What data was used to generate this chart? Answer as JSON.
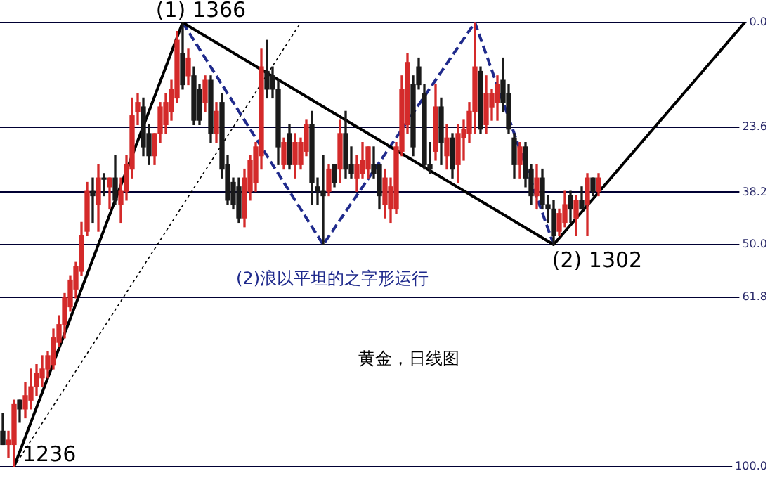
{
  "chart_data": {
    "type": "candlestick",
    "categories": [
      null,
      null,
      null,
      null,
      null,
      null,
      null,
      null,
      null,
      null,
      null,
      null,
      null,
      null,
      null,
      null,
      null,
      null,
      null,
      null,
      null,
      null,
      null,
      null,
      null,
      null,
      null,
      null,
      null,
      null,
      null,
      null,
      null,
      null,
      null,
      null,
      null,
      null,
      null,
      null,
      null,
      null,
      null,
      null,
      null,
      null,
      null,
      null,
      null,
      null,
      null,
      null,
      null,
      null,
      null,
      null,
      null,
      null,
      null,
      null,
      null,
      null,
      null,
      null,
      null,
      null,
      null,
      null,
      null,
      null,
      null,
      null,
      null,
      null,
      null,
      null,
      null,
      null,
      null,
      null,
      null,
      null,
      null,
      null,
      null,
      null,
      null,
      null,
      null,
      null,
      null,
      null,
      null,
      null,
      null,
      null,
      null,
      null,
      null,
      null,
      null,
      null,
      null,
      null,
      null,
      null,
      null,
      null,
      null,
      null,
      null,
      null,
      null,
      null,
      null,
      null,
      null,
      null,
      null,
      null,
      null,
      null,
      null,
      null,
      null,
      null,
      null,
      null,
      null,
      null,
      null,
      null,
      null,
      null,
      null,
      null,
      null
    ],
    "ohlc": [
      [
        92,
        95,
        88,
        95
      ],
      [
        95,
        98,
        92,
        94
      ],
      [
        95,
        100,
        85,
        86
      ],
      [
        85,
        90,
        85,
        87
      ],
      [
        87,
        89,
        81,
        84
      ],
      [
        85,
        87,
        78,
        82
      ],
      [
        82,
        84,
        77,
        79
      ],
      [
        80,
        82,
        75,
        78
      ],
      [
        78,
        80,
        74,
        75
      ],
      [
        77,
        78,
        69,
        71
      ],
      [
        72,
        73,
        66,
        68
      ],
      [
        68,
        71,
        61,
        62
      ],
      [
        64,
        65,
        57,
        58
      ],
      [
        60,
        62,
        54,
        55
      ],
      [
        56,
        57,
        45,
        48
      ],
      [
        47,
        48,
        36,
        38
      ],
      [
        38,
        45,
        35,
        39
      ],
      [
        41,
        47,
        32,
        35
      ],
      [
        35,
        39,
        34,
        35
      ],
      [
        37,
        42,
        35,
        35
      ],
      [
        35,
        41,
        30,
        40
      ],
      [
        41,
        45,
        35,
        38
      ],
      [
        38,
        40,
        30,
        32
      ],
      [
        33,
        35,
        17,
        21
      ],
      [
        20,
        23,
        16,
        18
      ],
      [
        19,
        30,
        17,
        28
      ],
      [
        25,
        32,
        23,
        30
      ],
      [
        30,
        32,
        25,
        25
      ],
      [
        25,
        27,
        18,
        19
      ],
      [
        23,
        25,
        16,
        18
      ],
      [
        20,
        22,
        13,
        15
      ],
      [
        17,
        18,
        2,
        4
      ],
      [
        7,
        15,
        0,
        14
      ],
      [
        12,
        14,
        6,
        8
      ],
      [
        12,
        23,
        10,
        22
      ],
      [
        15,
        23,
        14,
        22
      ],
      [
        18,
        20,
        12,
        13
      ],
      [
        13,
        27,
        12,
        25
      ],
      [
        25,
        27,
        18,
        20
      ],
      [
        18,
        35,
        16,
        33
      ],
      [
        32,
        41,
        30,
        40
      ],
      [
        36,
        42,
        35,
        41
      ],
      [
        37,
        45,
        35,
        44
      ],
      [
        44,
        46,
        33,
        35
      ],
      [
        38,
        40,
        30,
        31
      ],
      [
        36,
        38,
        27,
        28
      ],
      [
        30,
        33,
        6,
        10
      ],
      [
        11,
        17,
        4,
        15
      ],
      [
        12,
        17,
        10,
        15
      ],
      [
        15,
        32,
        13,
        28
      ],
      [
        32,
        33,
        26,
        27
      ],
      [
        25,
        33,
        23,
        32
      ],
      [
        32,
        35,
        25,
        27
      ],
      [
        32,
        33,
        26,
        27
      ],
      [
        29,
        30,
        22,
        23
      ],
      [
        23,
        41,
        20,
        36
      ],
      [
        37,
        41,
        35,
        38
      ],
      [
        38,
        50,
        30,
        39
      ],
      [
        38,
        39,
        32,
        33
      ],
      [
        32,
        37,
        32,
        36
      ],
      [
        33,
        36,
        22,
        25
      ],
      [
        25,
        35,
        20,
        33
      ],
      [
        32,
        35,
        28,
        34
      ],
      [
        35,
        38,
        30,
        32
      ],
      [
        34,
        35,
        27,
        31
      ],
      [
        33,
        35,
        28,
        28
      ],
      [
        32,
        35,
        28,
        34
      ],
      [
        32,
        42,
        32,
        39
      ],
      [
        41,
        44,
        33,
        35
      ],
      [
        42,
        45,
        35,
        37
      ],
      [
        42,
        43,
        27,
        28
      ],
      [
        29,
        30,
        12,
        15
      ],
      [
        23,
        25,
        7,
        9
      ],
      [
        14,
        30,
        12,
        28
      ],
      [
        10,
        15,
        8,
        14
      ],
      [
        16,
        33,
        14,
        32
      ],
      [
        32,
        34,
        27,
        33
      ],
      [
        29,
        31,
        14,
        19
      ],
      [
        19,
        32,
        17,
        27
      ],
      [
        30,
        33,
        23,
        26
      ],
      [
        26,
        35,
        25,
        33
      ],
      [
        32,
        36,
        23,
        25
      ],
      [
        26,
        31,
        22,
        24
      ],
      [
        25,
        27,
        18,
        20
      ],
      [
        20,
        25,
        0,
        10
      ],
      [
        11,
        25,
        10,
        24
      ],
      [
        23,
        25,
        12,
        16
      ],
      [
        19,
        22,
        15,
        16
      ],
      [
        18,
        22,
        12,
        14
      ],
      [
        13,
        20,
        8,
        18
      ],
      [
        16,
        25,
        14,
        24
      ],
      [
        26,
        35,
        25,
        32
      ],
      [
        32,
        35,
        27,
        28
      ],
      [
        28,
        37,
        27,
        35
      ],
      [
        33,
        41,
        32,
        39
      ],
      [
        39,
        42,
        32,
        35
      ],
      [
        35,
        42,
        33,
        41
      ],
      [
        41,
        45,
        39,
        42
      ],
      [
        42,
        50,
        40,
        48
      ],
      [
        47,
        48,
        42,
        43
      ],
      [
        45,
        46,
        38,
        41
      ],
      [
        39,
        45,
        38,
        42
      ],
      [
        44,
        48,
        39,
        40
      ],
      [
        40,
        42,
        37,
        42
      ],
      [
        41,
        48,
        34,
        35
      ],
      [
        35,
        39,
        35,
        38
      ],
      [
        38,
        39,
        34,
        35
      ],
      null,
      null,
      null,
      null,
      null,
      null,
      null,
      null,
      null,
      null,
      null,
      null,
      null,
      null,
      null,
      null,
      null,
      null,
      null,
      null,
      null,
      null,
      null,
      null,
      null,
      null,
      null,
      null,
      null,
      null
    ],
    "series": [
      {
        "type": "line",
        "color": "#000000",
        "line_style": "solid",
        "values": [
          null,
          null,
          100,
          null,
          null,
          null,
          null,
          null,
          null,
          null,
          null,
          null,
          null,
          null,
          null,
          null,
          null,
          null,
          null,
          null,
          null,
          null,
          null,
          null,
          null,
          null,
          null,
          null,
          null,
          null,
          null,
          null,
          0,
          null,
          null,
          null,
          null,
          null,
          null,
          null,
          null,
          null,
          null,
          null,
          null,
          null,
          null,
          null,
          null,
          null,
          null,
          null,
          null,
          null,
          null,
          null,
          null,
          null,
          null,
          null,
          null,
          null,
          null,
          null,
          null,
          null,
          null,
          null,
          null,
          null,
          null,
          null,
          null,
          null,
          null,
          null,
          null,
          null,
          null,
          null,
          null,
          null,
          null,
          null,
          null,
          null,
          null,
          null,
          null,
          null,
          null,
          null,
          null,
          null,
          null,
          null,
          null,
          null,
          50,
          null,
          null,
          null,
          null,
          null,
          null,
          null,
          null,
          null,
          null,
          null,
          null,
          null,
          null,
          null,
          null,
          null,
          null,
          null,
          null,
          null,
          null,
          null,
          null,
          null,
          null,
          null,
          null,
          null,
          null,
          null,
          null,
          null,
          0,
          null,
          null,
          null,
          null
        ]
      },
      {
        "type": "line",
        "color": "#1f2a8c",
        "line_style": "dashed",
        "values": [
          null,
          null,
          null,
          null,
          null,
          null,
          null,
          null,
          null,
          null,
          null,
          null,
          null,
          null,
          null,
          null,
          null,
          null,
          null,
          null,
          null,
          null,
          null,
          null,
          null,
          null,
          null,
          null,
          null,
          null,
          null,
          null,
          0,
          null,
          null,
          null,
          null,
          null,
          null,
          null,
          null,
          null,
          null,
          null,
          null,
          null,
          null,
          null,
          null,
          null,
          null,
          null,
          null,
          null,
          null,
          null,
          null,
          50,
          null,
          null,
          null,
          null,
          null,
          null,
          null,
          null,
          null,
          null,
          null,
          null,
          null,
          null,
          null,
          null,
          null,
          null,
          null,
          null,
          null,
          null,
          null,
          null,
          null,
          null,
          0,
          null,
          null,
          null,
          null,
          null,
          null,
          null,
          null,
          null,
          null,
          null,
          null,
          null,
          50,
          null,
          null,
          null,
          null,
          null,
          null,
          null,
          null,
          null,
          null,
          null,
          null,
          null,
          null,
          null,
          null,
          null,
          null,
          null,
          null,
          null,
          null,
          null,
          null,
          null,
          null,
          null,
          null,
          null,
          null,
          null,
          null,
          null,
          null,
          null,
          null,
          null,
          null
        ]
      },
      {
        "type": "line",
        "color": "#000000",
        "line_style": "dotted",
        "values": [
          null,
          null,
          100,
          null,
          null,
          null,
          null,
          null,
          null,
          null,
          null,
          null,
          null,
          null,
          null,
          null,
          null,
          null,
          null,
          null,
          null,
          null,
          null,
          null,
          null,
          null,
          null,
          null,
          null,
          null,
          null,
          null,
          null,
          null,
          null,
          null,
          null,
          null,
          null,
          null,
          null,
          null,
          null,
          null,
          null,
          null,
          null,
          null,
          null,
          null,
          null,
          null,
          null,
          0,
          null,
          null,
          null,
          null,
          null,
          null,
          null,
          null,
          null,
          null,
          null,
          null,
          null,
          null,
          null,
          null,
          null,
          null,
          null,
          null,
          null,
          null,
          null,
          null,
          null,
          null,
          null,
          null,
          null,
          null,
          null,
          null,
          null,
          null,
          null,
          null,
          null,
          null,
          null,
          null,
          null,
          null,
          null,
          null,
          null,
          null,
          null,
          null,
          null,
          null,
          null,
          null,
          null,
          null,
          null,
          null,
          null,
          null,
          null,
          null,
          null,
          null,
          null,
          null,
          null,
          null,
          null,
          null,
          null,
          null,
          null,
          null,
          null,
          null,
          null,
          null,
          null,
          null,
          null,
          null,
          null,
          null,
          null
        ]
      }
    ],
    "ylim": [
      100,
      0
    ],
    "yticks": [
      {
        "value": 0,
        "label": "0.0"
      },
      23.6,
      38.2,
      {
        "value": 50,
        "label": "50.0"
      },
      61.8,
      {
        "value": 100,
        "label": "100.0"
      }
    ],
    "grid": "y",
    "tick_labels": "y",
    "annotations": [
      "(1) 1366",
      "(2) 1302",
      "1236",
      "(2)浪以平坦的之字形运行",
      "黄金，日线图"
    ]
  }
}
